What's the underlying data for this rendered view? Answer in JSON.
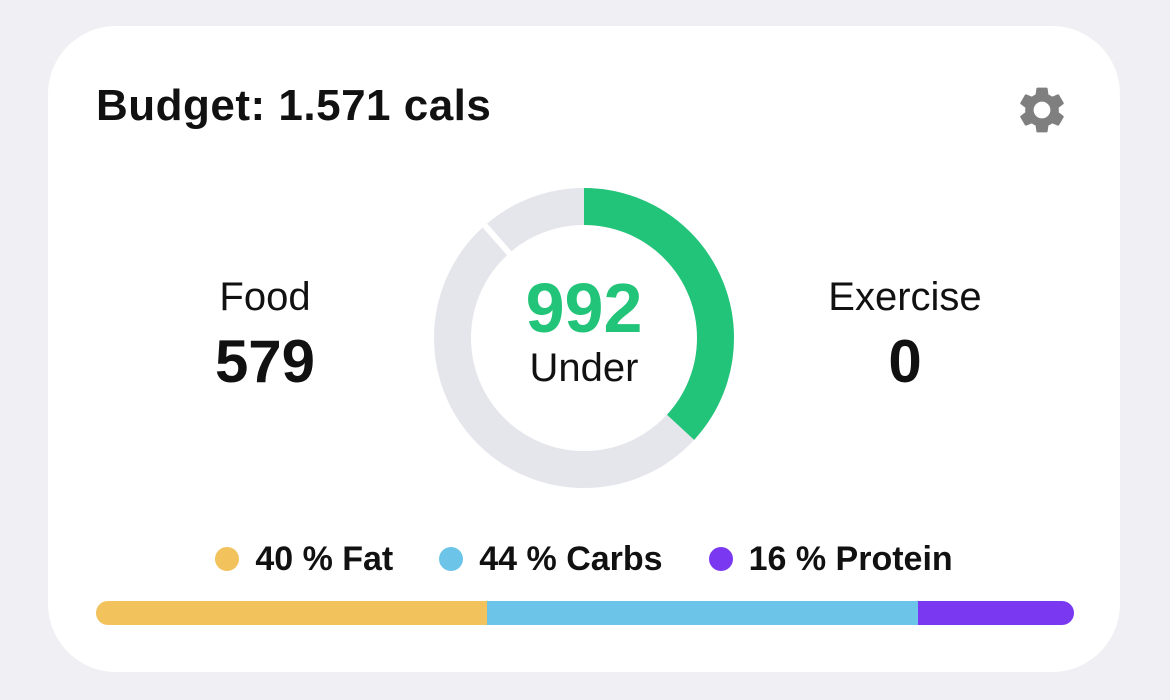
{
  "header": {
    "title": "Budget: 1.571 cals",
    "settings_icon": "gear-icon"
  },
  "food": {
    "label": "Food",
    "value": "579"
  },
  "exercise": {
    "label": "Exercise",
    "value": "0"
  },
  "ring": {
    "remaining": "992",
    "status": "Under",
    "consumed_fraction": 0.3686,
    "colors": {
      "progress": "#22c479",
      "track": "#e5e5ec",
      "gap": "#ffffff"
    }
  },
  "macros": [
    {
      "label": "40 % Fat",
      "percent": 40,
      "color": "#f2c25c"
    },
    {
      "label": "44 % Carbs",
      "percent": 44,
      "color": "#6cc5e8"
    },
    {
      "label": "16 % Protein",
      "percent": 16,
      "color": "#7a39f0"
    }
  ]
}
